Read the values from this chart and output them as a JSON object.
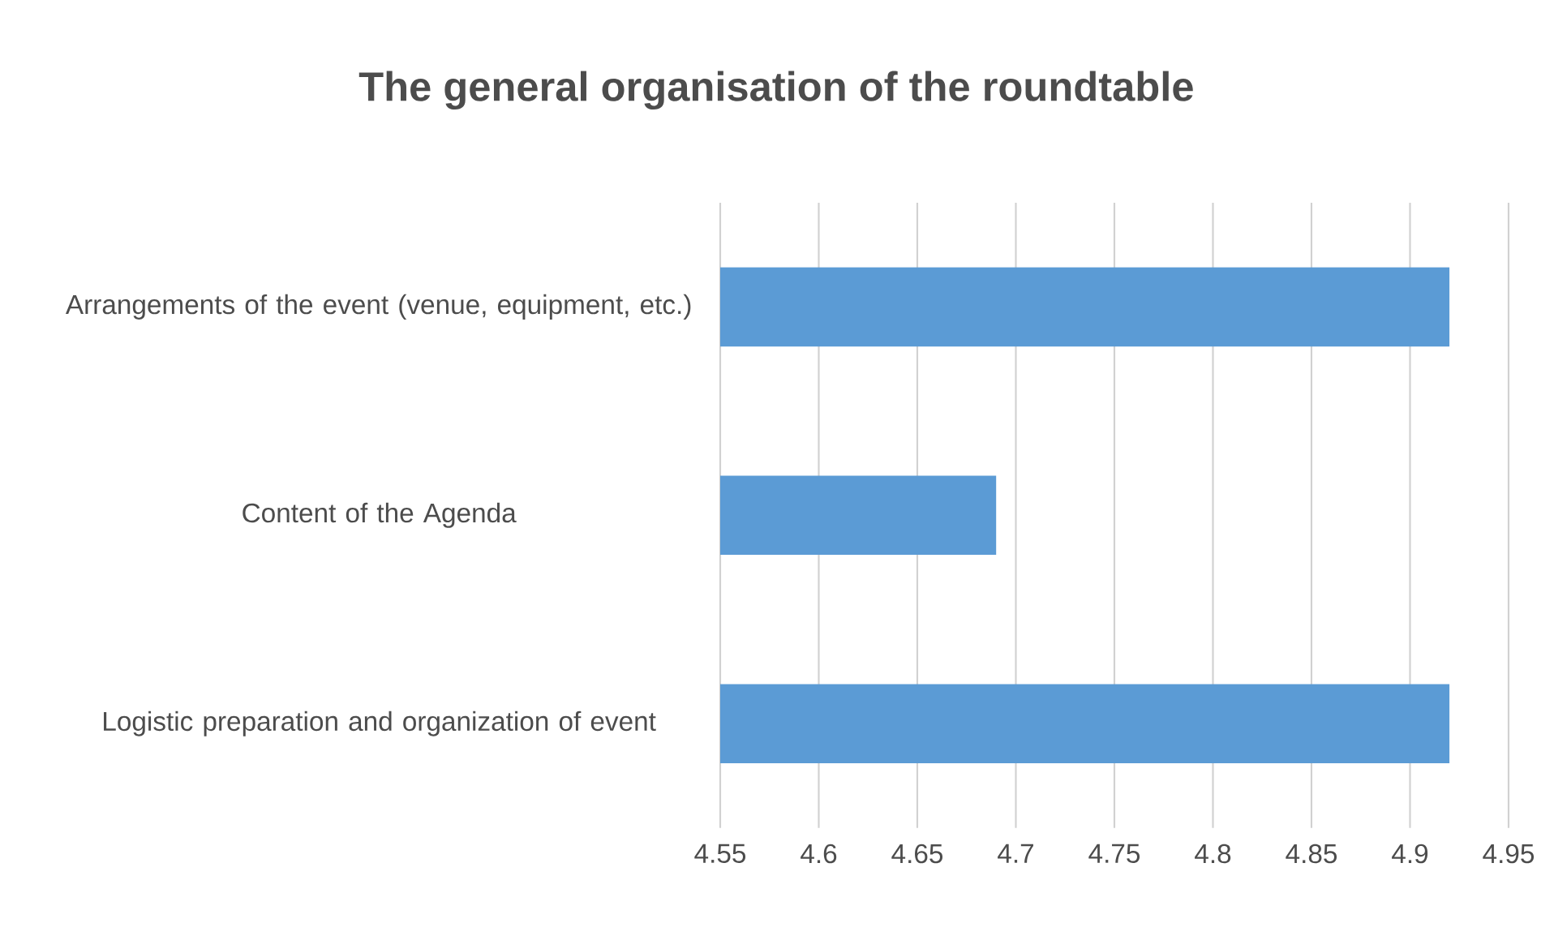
{
  "chart_data": {
    "type": "bar",
    "orientation": "horizontal",
    "title": "The general organisation of the roundtable",
    "categories": [
      "Arrangements of the event (venue, equipment, etc.)",
      "Content of the Agenda",
      "Logistic preparation and organization of event"
    ],
    "values": [
      4.92,
      4.69,
      4.92
    ],
    "color": "#5b9bd5",
    "xlim": [
      4.55,
      4.95
    ],
    "xticks": [
      4.55,
      4.6,
      4.65,
      4.7,
      4.75,
      4.8,
      4.85,
      4.9,
      4.95
    ],
    "grid": "x"
  }
}
